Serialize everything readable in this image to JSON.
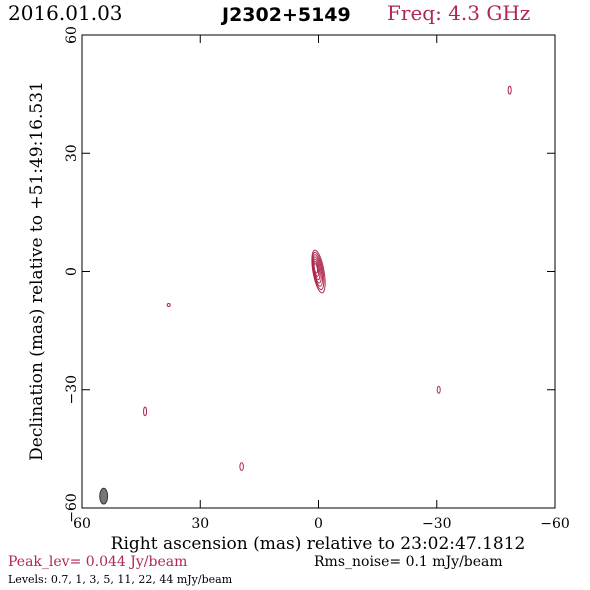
{
  "header": {
    "date": "2016.01.03",
    "source": "J2302+5149",
    "freq": "Freq: 4.3 GHz"
  },
  "footer": {
    "peak": "Peak_lev=  0.044 Jy/beam",
    "rms": "Rms_noise=  0.1 mJy/beam",
    "levels": "Levels: 0.7,   1,   3,   5,   11,   22,   44  mJy/beam"
  },
  "colors": {
    "accent": "#b0284f",
    "frame": "#000000",
    "beam": "#555555"
  },
  "chart_data": {
    "type": "contour",
    "xlabel": "Right ascension (mas) relative to 23:02:47.1812",
    "ylabel": "Declination (mas) relative to +51:49:16.531",
    "xlim": [
      60,
      -60
    ],
    "ylim": [
      -60,
      60
    ],
    "xticks": [
      60,
      30,
      0,
      -30,
      -60
    ],
    "yticks": [
      60,
      30,
      0,
      -30,
      -60
    ],
    "xtick_labels": [
      "60",
      "30",
      "0",
      "−30",
      "−60"
    ],
    "ytick_labels": [
      "60",
      "30",
      "0",
      "−30",
      "−60"
    ],
    "grid": false,
    "contour_levels_mJy": [
      0.7,
      1,
      3,
      5,
      11,
      22,
      44
    ],
    "peak_Jy_per_beam": 0.044,
    "rms_mJy_per_beam": 0.1,
    "components": [
      {
        "x": 0.0,
        "y": 0.0,
        "rx": 1.4,
        "ry": 5.5,
        "angle": -10,
        "levels": 7
      },
      {
        "x": -48.5,
        "y": 46.0,
        "rx": 0.35,
        "ry": 1.0,
        "angle": 0,
        "levels": 1
      },
      {
        "x": 44.0,
        "y": -35.5,
        "rx": 0.3,
        "ry": 1.1,
        "angle": 0,
        "levels": 1
      },
      {
        "x": 19.5,
        "y": -49.5,
        "rx": 0.45,
        "ry": 1.0,
        "angle": 0,
        "levels": 1
      },
      {
        "x": -30.5,
        "y": -30.0,
        "rx": 0.3,
        "ry": 0.9,
        "angle": 0,
        "levels": 1
      },
      {
        "x": 38.0,
        "y": -8.5,
        "rx": 0.15,
        "ry": 0.25,
        "angle": 0,
        "levels": 1
      }
    ],
    "beam": {
      "x": 54.5,
      "y": -57.0,
      "rx": 1.0,
      "ry": 2.0,
      "angle": 0
    }
  }
}
